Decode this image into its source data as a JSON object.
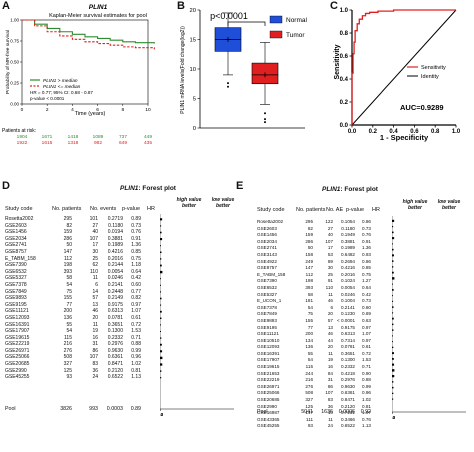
{
  "panels": {
    "A": "A",
    "B": "B",
    "C": "C",
    "D": "D",
    "E": "E"
  },
  "km": {
    "gene": "PLIN1",
    "title": "Kaplan-Meier survival estimates for pool",
    "ylabel": "Probability of MR-free survival",
    "xlabel": "Time (years)",
    "legend_high": "PLIN1 > median",
    "legend_low": "PLIN1 <= median",
    "hr_text": "HR = 0.77; 95% CI: 0.68 - 0.87",
    "p_text": "p-value < 0.0001",
    "risk_title": "Patients at risk:",
    "risk_high": [
      "1904",
      "1671",
      "1418",
      "1089",
      "737",
      "449"
    ],
    "risk_low": [
      "1922",
      "1615",
      "1318",
      "982",
      "649",
      "435"
    ],
    "colors": {
      "high": "#2e8b2e",
      "low": "#e02020"
    }
  },
  "box": {
    "pvalue": "p<0.0001",
    "ylabel": "PLIN1 mRNA levels(Fold change(log2))",
    "legend": [
      "Normal",
      "Tumor"
    ],
    "colors": {
      "normal": "#1f4fd8",
      "tumor": "#e02020"
    }
  },
  "roc": {
    "ylabel": "Sensitivity",
    "xlabel": "1 - Specificity",
    "legend": [
      "Sensitivity",
      "Identity"
    ],
    "auc": "AUC=0.9289"
  },
  "forestD": {
    "title_gene": "PLIN1",
    "title_rest": ": Forest plot",
    "headers": {
      "study": "Study code",
      "n": "No. patients",
      "e": "No. events",
      "p": "p-value",
      "hr": "HR"
    },
    "hint_high": [
      "high value",
      "better"
    ],
    "hint_low": [
      "low value",
      "better"
    ],
    "rows": [
      {
        "study": "Rosetta2002",
        "n": "295",
        "e": "101",
        "p": "0.2719",
        "hr": "0.89"
      },
      {
        "study": "GSE2603",
        "n": "82",
        "e": "27",
        "p": "0.1180",
        "hr": "0.73"
      },
      {
        "study": "GSE1456",
        "n": "159",
        "e": "40",
        "p": "0.0194",
        "hr": "0.76"
      },
      {
        "study": "GSE2034",
        "n": "286",
        "e": "107",
        "p": "0.3881",
        "hr": "0.91"
      },
      {
        "study": "GSE2741",
        "n": "50",
        "e": "17",
        "p": "0.1989",
        "hr": "1.36"
      },
      {
        "study": "GSE8757",
        "n": "147",
        "e": "30",
        "p": "0.4216",
        "hr": "0.85"
      },
      {
        "study": "E_TABM_158",
        "n": "112",
        "e": "25",
        "p": "0.2016",
        "hr": "0.75"
      },
      {
        "study": "GSE7390",
        "n": "198",
        "e": "62",
        "p": "0.2144",
        "hr": "1.18"
      },
      {
        "study": "GSE6532",
        "n": "393",
        "e": "110",
        "p": "0.0054",
        "hr": "0.64"
      },
      {
        "study": "GSE5327",
        "n": "58",
        "e": "11",
        "p": "0.0246",
        "hr": "0.42"
      },
      {
        "study": "GSE7378",
        "n": "54",
        "e": "6",
        "p": "0.2141",
        "hr": "0.60"
      },
      {
        "study": "GSE7849",
        "n": "75",
        "e": "14",
        "p": "0.2448",
        "hr": "0.77"
      },
      {
        "study": "GSE9893",
        "n": "155",
        "e": "57",
        "p": "0.2149",
        "hr": "0.82"
      },
      {
        "study": "GSE9195",
        "n": "77",
        "e": "13",
        "p": "0.9175",
        "hr": "0.97"
      },
      {
        "study": "GSE11121",
        "n": "200",
        "e": "46",
        "p": "0.6313",
        "hr": "1.07"
      },
      {
        "study": "GSE12093",
        "n": "136",
        "e": "20",
        "p": "0.0781",
        "hr": "0.61"
      },
      {
        "study": "GSE16391",
        "n": "55",
        "e": "11",
        "p": "0.3651",
        "hr": "0.72"
      },
      {
        "study": "GSE17907",
        "n": "54",
        "e": "19",
        "p": "0.1300",
        "hr": "1.53"
      },
      {
        "study": "GSE19615",
        "n": "115",
        "e": "16",
        "p": "0.2332",
        "hr": "0.71"
      },
      {
        "study": "GSE22219",
        "n": "216",
        "e": "31",
        "p": "0.2976",
        "hr": "0.88"
      },
      {
        "study": "GSE26971",
        "n": "276",
        "e": "86",
        "p": "0.9630",
        "hr": "0.99"
      },
      {
        "study": "GSE25066",
        "n": "508",
        "e": "107",
        "p": "0.6361",
        "hr": "0.96"
      },
      {
        "study": "GSE20685",
        "n": "327",
        "e": "83",
        "p": "0.8471",
        "hr": "1.02"
      },
      {
        "study": "GSE2990",
        "n": "125",
        "e": "36",
        "p": "0.2120",
        "hr": "0.81"
      },
      {
        "study": "GSE45255",
        "n": "93",
        "e": "24",
        "p": "0.6522",
        "hr": "1.13"
      }
    ],
    "pool": {
      "study": "Pool",
      "n": "3826",
      "e": "993",
      "p": "0.0003",
      "hr": "0.89"
    },
    "axis_ticks": [
      "0.2",
      "1.0",
      "5.0"
    ]
  },
  "forestE": {
    "title_gene": "PLIN1",
    "title_rest": ": Forest plot",
    "headers": {
      "study": "Study code",
      "n": "No. patients",
      "e": "No. AE",
      "p": "p-value",
      "hr": "HR"
    },
    "hint_high": [
      "high value",
      "better"
    ],
    "hint_low": [
      "low value",
      "better"
    ],
    "rows": [
      {
        "study": "Rosetta2002",
        "n": "295",
        "e": "122",
        "p": "0.1054",
        "hr": "0.86"
      },
      {
        "study": "GSE2603",
        "n": "82",
        "e": "27",
        "p": "0.1180",
        "hr": "0.73"
      },
      {
        "study": "GSE1456",
        "n": "159",
        "e": "40",
        "p": "0.1949",
        "hr": "0.76"
      },
      {
        "study": "GSE2034",
        "n": "286",
        "e": "107",
        "p": "0.3881",
        "hr": "0.91"
      },
      {
        "study": "GSE2741",
        "n": "50",
        "e": "17",
        "p": "0.1989",
        "hr": "1.36"
      },
      {
        "study": "GSE3143",
        "n": "158",
        "e": "53",
        "p": "0.6482",
        "hr": "0.93"
      },
      {
        "study": "GSE4922",
        "n": "249",
        "e": "89",
        "p": "0.2694",
        "hr": "0.86"
      },
      {
        "study": "GSE8757",
        "n": "147",
        "e": "30",
        "p": "0.4216",
        "hr": "0.85"
      },
      {
        "study": "E_TABM_158",
        "n": "112",
        "e": "25",
        "p": "0.2016",
        "hr": "0.75"
      },
      {
        "study": "GSE7390",
        "n": "198",
        "e": "91",
        "p": "0.1024",
        "hr": "1.27"
      },
      {
        "study": "GSE6532",
        "n": "393",
        "e": "110",
        "p": "0.0054",
        "hr": "0.64"
      },
      {
        "study": "GSE5327",
        "n": "58",
        "e": "11",
        "p": "0.0246",
        "hr": "0.42"
      },
      {
        "study": "E_UCON_1",
        "n": "181",
        "e": "46",
        "p": "0.1004",
        "hr": "0.73"
      },
      {
        "study": "GSE7378",
        "n": "54",
        "e": "6",
        "p": "0.2141",
        "hr": "0.60"
      },
      {
        "study": "GSE7849",
        "n": "75",
        "e": "20",
        "p": "0.1230",
        "hr": "0.69"
      },
      {
        "study": "GSE9893",
        "n": "155",
        "e": "57",
        "p": "< 0.0001",
        "hr": "0.63"
      },
      {
        "study": "GSE9195",
        "n": "77",
        "e": "13",
        "p": "0.9175",
        "hr": "0.97"
      },
      {
        "study": "GSE11121",
        "n": "200",
        "e": "46",
        "p": "0.6313",
        "hr": "1.07"
      },
      {
        "study": "GSE10510",
        "n": "134",
        "e": "44",
        "p": "0.7314",
        "hr": "0.97"
      },
      {
        "study": "GSE12093",
        "n": "136",
        "e": "20",
        "p": "0.0781",
        "hr": "0.61"
      },
      {
        "study": "GSE16391",
        "n": "55",
        "e": "11",
        "p": "0.3651",
        "hr": "0.72"
      },
      {
        "study": "GSE17907",
        "n": "54",
        "e": "19",
        "p": "0.1300",
        "hr": "1.53"
      },
      {
        "study": "GSE19615",
        "n": "115",
        "e": "16",
        "p": "0.2332",
        "hr": "0.71"
      },
      {
        "study": "GSE21653",
        "n": "244",
        "e": "84",
        "p": "0.4218",
        "hr": "0.90"
      },
      {
        "study": "GSE22219",
        "n": "216",
        "e": "31",
        "p": "0.2976",
        "hr": "0.88"
      },
      {
        "study": "GSE26971",
        "n": "276",
        "e": "86",
        "p": "0.9630",
        "hr": "0.99"
      },
      {
        "study": "GSE25066",
        "n": "508",
        "e": "107",
        "p": "0.6361",
        "hr": "0.96"
      },
      {
        "study": "GSE20685",
        "n": "327",
        "e": "83",
        "p": "0.8471",
        "hr": "1.02"
      },
      {
        "study": "GSE2990",
        "n": "125",
        "e": "36",
        "p": "0.2120",
        "hr": "0.81"
      },
      {
        "study": "GSE16987",
        "n": "147",
        "e": "10",
        "p": "0.7231",
        "hr": "1.07"
      },
      {
        "study": "GSE43365",
        "n": "111",
        "e": "11",
        "p": "0.3466",
        "hr": "0.76"
      },
      {
        "study": "GSE45255",
        "n": "93",
        "e": "24",
        "p": "0.6522",
        "hr": "1.13"
      }
    ],
    "pool": {
      "study": "Pool",
      "n": "5041",
      "e": "1636",
      "p": "0.0006",
      "hr": "0.92"
    },
    "axis_ticks": [
      "0.2",
      "1.0",
      "5.0"
    ]
  },
  "chart_data": [
    {
      "type": "line",
      "title": "Kaplan-Meier survival estimates for pool",
      "xlabel": "Time (years)",
      "ylabel": "Probability of MR-free survival",
      "xlim": [
        0,
        10
      ],
      "ylim": [
        0,
        1
      ],
      "xticks": [
        0,
        2,
        4,
        6,
        8,
        10
      ],
      "yticks": [
        0,
        0.25,
        0.5,
        0.75,
        1
      ],
      "series": [
        {
          "name": "PLIN1 > median",
          "x": [
            0,
            1,
            2,
            3,
            4,
            5,
            6,
            7,
            8,
            9,
            10.5
          ],
          "y": [
            1,
            0.95,
            0.9,
            0.86,
            0.83,
            0.8,
            0.78,
            0.76,
            0.74,
            0.73,
            0.72
          ]
        },
        {
          "name": "PLIN1 <= median",
          "x": [
            0,
            1,
            2,
            3,
            4,
            5,
            6,
            7,
            8,
            9,
            10.5
          ],
          "y": [
            1,
            0.93,
            0.86,
            0.81,
            0.77,
            0.74,
            0.72,
            0.7,
            0.68,
            0.67,
            0.65
          ]
        }
      ]
    },
    {
      "type": "box",
      "categories": [
        "Normal",
        "Tumor"
      ],
      "ylabel": "PLIN1 mRNA levels(Fold change(log2))",
      "ylim": [
        0,
        20
      ],
      "yticks": [
        0,
        5,
        10,
        15,
        20
      ],
      "boxes": [
        {
          "name": "Normal",
          "min": 9,
          "q1": 13,
          "median": 15,
          "q3": 17,
          "max": 19.5,
          "mean": 15,
          "outliers": [
            7.6,
            7
          ]
        },
        {
          "name": "Tumor",
          "min": 4,
          "q1": 7.5,
          "median": 9,
          "q3": 11,
          "max": 14.5,
          "mean": 9,
          "outliers": [
            2.5,
            1.5,
            1
          ]
        }
      ],
      "annotation": "p<0.0001"
    },
    {
      "type": "line",
      "xlabel": "1 - Specificity",
      "ylabel": "Sensitivity",
      "xlim": [
        0,
        1
      ],
      "ylim": [
        0,
        1
      ],
      "xticks": [
        0,
        0.2,
        0.4,
        0.6,
        0.8,
        1.0
      ],
      "yticks": [
        0,
        0.2,
        0.4,
        0.6,
        0.8,
        1.0
      ],
      "series": [
        {
          "name": "Sensitivity",
          "x": [
            0,
            0.01,
            0.02,
            0.03,
            0.05,
            0.07,
            0.1,
            0.13,
            0.17,
            0.25,
            0.4,
            0.6,
            1
          ],
          "y": [
            0,
            0.45,
            0.62,
            0.72,
            0.82,
            0.88,
            0.92,
            0.95,
            0.97,
            0.98,
            0.99,
            1,
            1
          ]
        },
        {
          "name": "Identity",
          "x": [
            0,
            1
          ],
          "y": [
            0,
            1
          ]
        }
      ],
      "annotation": "AUC=0.9289"
    },
    {
      "type": "forest",
      "title": "PLIN1: Forest plot",
      "scale": "log",
      "xticks": [
        0.2,
        1.0,
        5.0
      ],
      "panel": "D"
    },
    {
      "type": "forest",
      "title": "PLIN1: Forest plot",
      "scale": "log",
      "xticks": [
        0.2,
        1.0,
        5.0
      ],
      "panel": "E"
    }
  ]
}
